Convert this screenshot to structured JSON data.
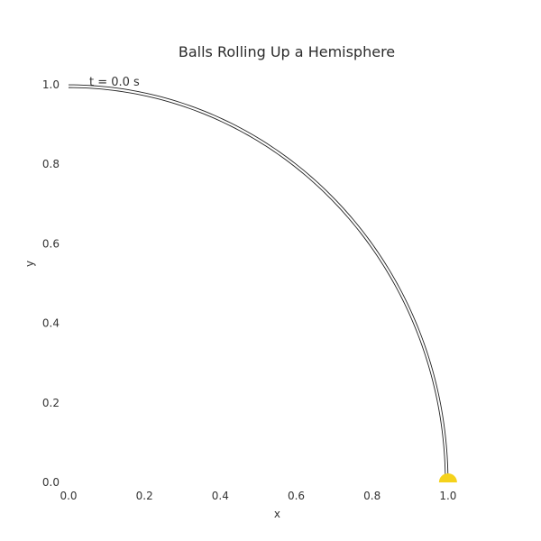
{
  "chart_data": {
    "type": "line",
    "title": "Balls Rolling Up a Hemisphere",
    "xlabel": "x",
    "ylabel": "y",
    "xlim": [
      0.0,
      1.15
    ],
    "ylim": [
      0.0,
      1.05
    ],
    "x_ticks": [
      "0.0",
      "0.2",
      "0.4",
      "0.6",
      "0.8",
      "1.0"
    ],
    "y_ticks": [
      "0.0",
      "0.2",
      "0.4",
      "0.6",
      "0.8",
      "1.0"
    ],
    "grid": false,
    "annotation": "t = 0.0 s",
    "hemisphere": {
      "shape": "quarter-circle",
      "radius": 1.0,
      "center": [
        0,
        0
      ]
    },
    "ball": {
      "x": 1.0,
      "y": 0.0,
      "color": "#f5d21b"
    },
    "colors": {
      "curve": "#222222",
      "ball": "#f5d21b"
    }
  }
}
